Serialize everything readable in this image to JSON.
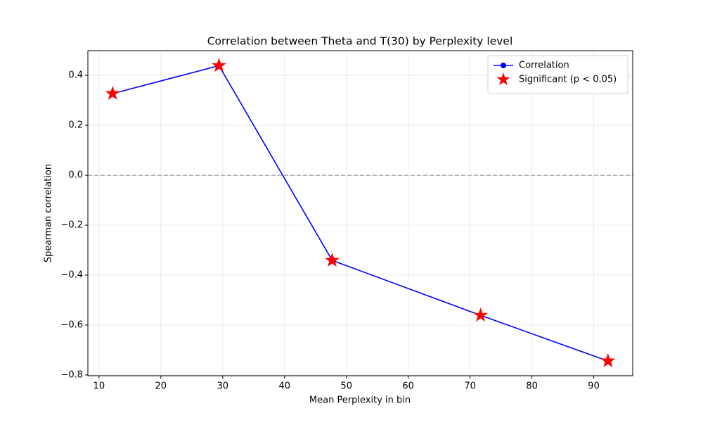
{
  "chart_data": {
    "type": "line",
    "title": "Correlation between Theta and T(30) by Perplexity level",
    "x_label": "Mean Perplexity in bin",
    "y_label": "Spearman correlation",
    "x": [
      12.2,
      29.4,
      47.7,
      71.7,
      92.3
    ],
    "series": [
      {
        "name": "Correlation",
        "color": "#0000ff",
        "marker": "circle",
        "values": [
          0.327,
          0.439,
          -0.341,
          -0.561,
          -0.744
        ]
      },
      {
        "name": "Significant (p < 0.05)",
        "color": "#ff0000",
        "marker": "star",
        "values": [
          0.327,
          0.439,
          -0.341,
          -0.561,
          -0.744
        ]
      }
    ],
    "hline": 0,
    "xlim": [
      8.2,
      96.3
    ],
    "ylim": [
      -0.803,
      0.499
    ],
    "xticks": [
      10,
      20,
      30,
      40,
      50,
      60,
      70,
      80,
      90
    ],
    "yticks": [
      {
        "value": -0.8,
        "label": "−0.8"
      },
      {
        "value": -0.6,
        "label": "−0.6"
      },
      {
        "value": -0.4,
        "label": "−0.4"
      },
      {
        "value": -0.2,
        "label": "−0.2"
      },
      {
        "value": 0,
        "label": "0.0"
      },
      0.2,
      0.4
    ],
    "grid": true,
    "legend": "upper-right"
  }
}
